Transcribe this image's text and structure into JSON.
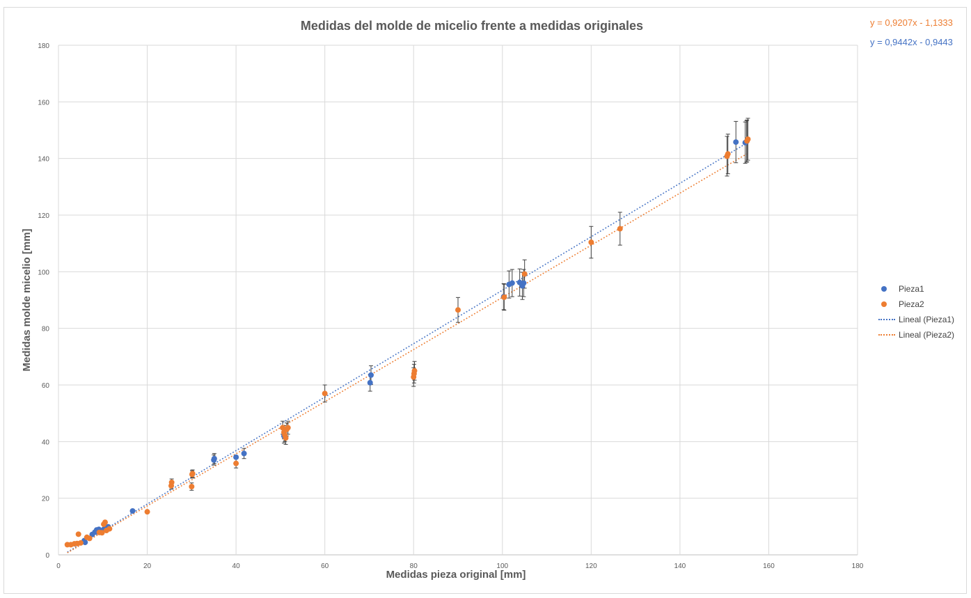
{
  "chart_data": {
    "type": "scatter",
    "title": "Medidas del molde de micelio frente a medidas originales",
    "xlabel": "Medidas pieza original [mm]",
    "ylabel": "Medidas molde micelio [mm]",
    "xlim": [
      0,
      180
    ],
    "ylim": [
      0,
      180
    ],
    "xticks": [
      "0",
      "20",
      "40",
      "60",
      "80",
      "100",
      "120",
      "140",
      "160",
      "180"
    ],
    "yticks": [
      "0",
      "20",
      "40",
      "60",
      "80",
      "100",
      "120",
      "140",
      "160",
      "180"
    ],
    "grid": true,
    "legend_position": "right",
    "series": [
      {
        "name": "Pieza1",
        "color": "#4472C4",
        "points": [
          [
            5.8,
            5.0
          ],
          [
            6.0,
            4.4
          ],
          [
            7.6,
            7.2
          ],
          [
            8.2,
            8.0
          ],
          [
            8.6,
            8.8
          ],
          [
            9.1,
            9.0
          ],
          [
            9.6,
            8.4
          ],
          [
            10.2,
            9.0
          ],
          [
            10.6,
            9.6
          ],
          [
            11.2,
            9.9
          ],
          [
            16.7,
            15.5
          ],
          [
            35.0,
            33.5
          ],
          [
            35.1,
            34.0
          ],
          [
            40.0,
            34.5
          ],
          [
            41.8,
            35.8
          ],
          [
            50.8,
            42.0
          ],
          [
            70.2,
            60.8
          ],
          [
            70.4,
            63.5
          ],
          [
            100.3,
            91.2
          ],
          [
            101.5,
            95.5
          ],
          [
            102.2,
            96.0
          ],
          [
            103.9,
            96.2
          ],
          [
            104.5,
            95.0
          ],
          [
            104.8,
            96.0
          ],
          [
            152.6,
            145.8
          ],
          [
            154.7,
            145.6
          ],
          [
            155.0,
            146.0
          ]
        ],
        "err": [
          0,
          0,
          0,
          0,
          0,
          0,
          0,
          0,
          0,
          0,
          0,
          1.8,
          1.8,
          0,
          1.8,
          2.5,
          3.0,
          3.3,
          4.6,
          4.8,
          4.8,
          4.8,
          4.8,
          4.8,
          7.3,
          7.3,
          7.3
        ]
      },
      {
        "name": "Pieza2",
        "color": "#ED7D31",
        "points": [
          [
            2.0,
            3.6
          ],
          [
            2.8,
            3.6
          ],
          [
            3.6,
            3.9
          ],
          [
            4.2,
            4.0
          ],
          [
            4.5,
            7.3
          ],
          [
            5.0,
            4.2
          ],
          [
            6.4,
            6.2
          ],
          [
            7.0,
            5.8
          ],
          [
            9.2,
            7.9
          ],
          [
            9.8,
            7.8
          ],
          [
            10.2,
            10.8
          ],
          [
            10.5,
            11.5
          ],
          [
            10.8,
            8.6
          ],
          [
            11.5,
            9.2
          ],
          [
            20.0,
            15.2
          ],
          [
            25.4,
            24.4
          ],
          [
            25.5,
            25.6
          ],
          [
            30.0,
            24.1
          ],
          [
            30.1,
            28.4
          ],
          [
            30.2,
            28.7
          ],
          [
            40.0,
            32.3
          ],
          [
            50.5,
            44.9
          ],
          [
            50.8,
            43.3
          ],
          [
            51.0,
            42.3
          ],
          [
            51.2,
            41.3
          ],
          [
            51.4,
            44.3
          ],
          [
            51.7,
            44.9
          ],
          [
            60.0,
            57.0
          ],
          [
            80.0,
            62.8
          ],
          [
            80.1,
            64.0
          ],
          [
            80.2,
            65.0
          ],
          [
            90.0,
            86.5
          ],
          [
            100.4,
            91.0
          ],
          [
            105.0,
            99.2
          ],
          [
            120.0,
            110.4
          ],
          [
            126.5,
            115.2
          ],
          [
            150.6,
            140.8
          ],
          [
            150.8,
            141.6
          ],
          [
            155.1,
            146.2
          ],
          [
            155.3,
            146.8
          ]
        ],
        "err": [
          0,
          0,
          0,
          0,
          0,
          0,
          0,
          0,
          0,
          0,
          0,
          0,
          0,
          0,
          0,
          1.2,
          1.2,
          1.3,
          1.3,
          1.3,
          1.6,
          2.3,
          2.3,
          2.3,
          2.3,
          2.3,
          2.3,
          3.0,
          3.3,
          3.3,
          3.3,
          4.4,
          4.6,
          5.0,
          5.6,
          5.8,
          7.0,
          7.0,
          7.4,
          7.4
        ]
      }
    ],
    "trendlines": [
      {
        "name": "Lineal (Pieza1)",
        "color": "#4472C4",
        "slope": 0.9442,
        "intercept": -0.9443,
        "x_range": [
          2,
          155.3
        ]
      },
      {
        "name": "Lineal (Pieza2)",
        "color": "#ED7D31",
        "slope": 0.9207,
        "intercept": -1.1333,
        "x_range": [
          2,
          155.3
        ]
      }
    ],
    "equations": {
      "pieza1": "y = 0,9442x - 0,9443",
      "pieza2": "y = 0,9207x - 1,1333"
    },
    "legend": [
      "Pieza1",
      "Pieza2",
      "Lineal (Pieza1)",
      "Lineal (Pieza2)"
    ]
  }
}
